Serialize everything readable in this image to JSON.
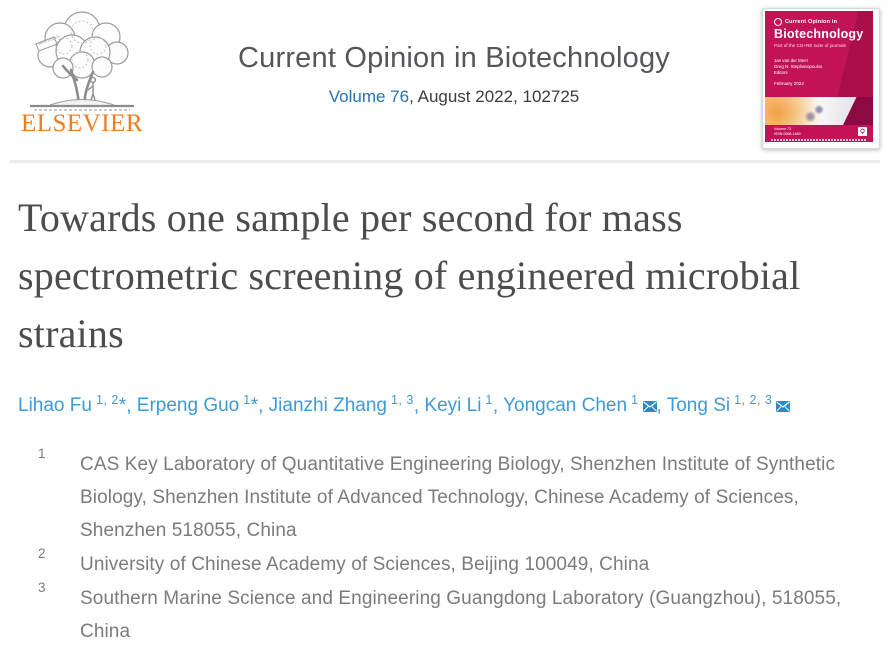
{
  "colors": {
    "link_blue": "#2672b0",
    "author_blue": "#3d9ad5",
    "title_gray": "#4c4c4c",
    "journal_title_gray": "#54565b",
    "body_gray": "#7b7b7b",
    "elsevier_orange": "#ee7d22",
    "cover_crimson": "#c31357",
    "divider_gray": "#ebebeb"
  },
  "header": {
    "logo": {
      "wordmark": "ELSEVIER",
      "ribbon_text": "NON SOLUS"
    },
    "journal_title": "Current Opinion in Biotechnology",
    "volume_link": "Volume 76",
    "issue_info": ", August 2022, 102725",
    "cover": {
      "brand_small": "Current Opinion in",
      "brand_big": "Biotechnology",
      "tagline": "Part of the CO+RE suite of journals",
      "editors_line1": "Jan van der Meer",
      "editors_line2": "Greg N. Stephanopoulos",
      "editors_label": "Editors",
      "date": "February 2022",
      "volume": "Volume 73",
      "issn": "ISSN 0958-1669"
    }
  },
  "article": {
    "title": "Towards one sample per second for mass spectrometric screening of engineered microbial strains",
    "separator": ", ",
    "star_char": "*",
    "authors": [
      {
        "name": "Lihao Fu",
        "sup": "1, 2",
        "star": true,
        "envelope": false
      },
      {
        "name": "Erpeng Guo",
        "sup": "1",
        "star": true,
        "envelope": false
      },
      {
        "name": "Jianzhi Zhang",
        "sup": "1, 3",
        "star": false,
        "envelope": false
      },
      {
        "name": "Keyi Li",
        "sup": "1",
        "star": false,
        "envelope": false
      },
      {
        "name": "Yongcan Chen",
        "sup": "1",
        "star": false,
        "envelope": true
      },
      {
        "name": "Tong Si",
        "sup": "1, 2, 3",
        "star": false,
        "envelope": true
      }
    ],
    "affiliations": [
      {
        "sup": "1",
        "text": "CAS Key Laboratory of Quantitative Engineering Biology, Shenzhen Institute of Synthetic Biology, Shenzhen Institute of Advanced Technology, Chinese Academy of Sciences, Shenzhen 518055, China"
      },
      {
        "sup": "2",
        "text": "University of Chinese Academy of Sciences, Beijing 100049, China"
      },
      {
        "sup": "3",
        "text": "Southern Marine Science and Engineering Guangdong Laboratory (Guangzhou), 518055, China"
      }
    ]
  }
}
